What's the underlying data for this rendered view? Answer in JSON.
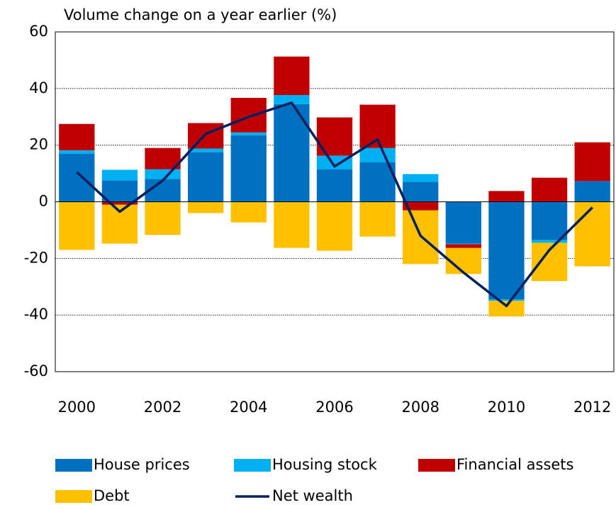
{
  "chart_data": {
    "type": "bar",
    "stacked": true,
    "title": "Volume change on a year earlier (%)",
    "categories": [
      "2000",
      null,
      "2002",
      null,
      "2004",
      null,
      "2006",
      null,
      "2008",
      null,
      "2010",
      null,
      "2012"
    ],
    "series": [
      {
        "name": "House prices",
        "color": "#0070c0",
        "values": [
          17,
          7.5,
          8,
          17.5,
          23.5,
          34.5,
          11.5,
          14,
          7,
          -14.8,
          -34.5,
          -13.5,
          7.3
        ]
      },
      {
        "name": "Housing stock",
        "color": "#00b0f0",
        "values": [
          1.2,
          3.8,
          3.5,
          1.3,
          1,
          3.2,
          4.8,
          5,
          2.8,
          -0.2,
          -0.5,
          -1,
          0
        ]
      },
      {
        "name": "Financial assets",
        "color": "#c00000",
        "values": [
          9.3,
          -1,
          7.5,
          9,
          12.2,
          13.6,
          13.5,
          15.3,
          -3,
          -1.3,
          3.8,
          8.5,
          13.7
        ]
      },
      {
        "name": "Debt",
        "color": "#ffc000",
        "values": [
          -17,
          -13.8,
          -11.7,
          -4,
          -7.3,
          -16.3,
          -17.3,
          -12.3,
          -19,
          -9.2,
          -5.5,
          -13.5,
          -22.8
        ]
      },
      {
        "name": "Net wealth",
        "color": "#002060",
        "type": "line",
        "values": [
          10.5,
          -3.5,
          7.5,
          24,
          30,
          35,
          12.5,
          22,
          -12,
          -25,
          -36.8,
          -17,
          -2
        ]
      }
    ],
    "ylim": [
      -60,
      60
    ],
    "yticks": [
      -60,
      -40,
      -20,
      0,
      20,
      40,
      60
    ],
    "grid": true,
    "legend": "bottom"
  }
}
